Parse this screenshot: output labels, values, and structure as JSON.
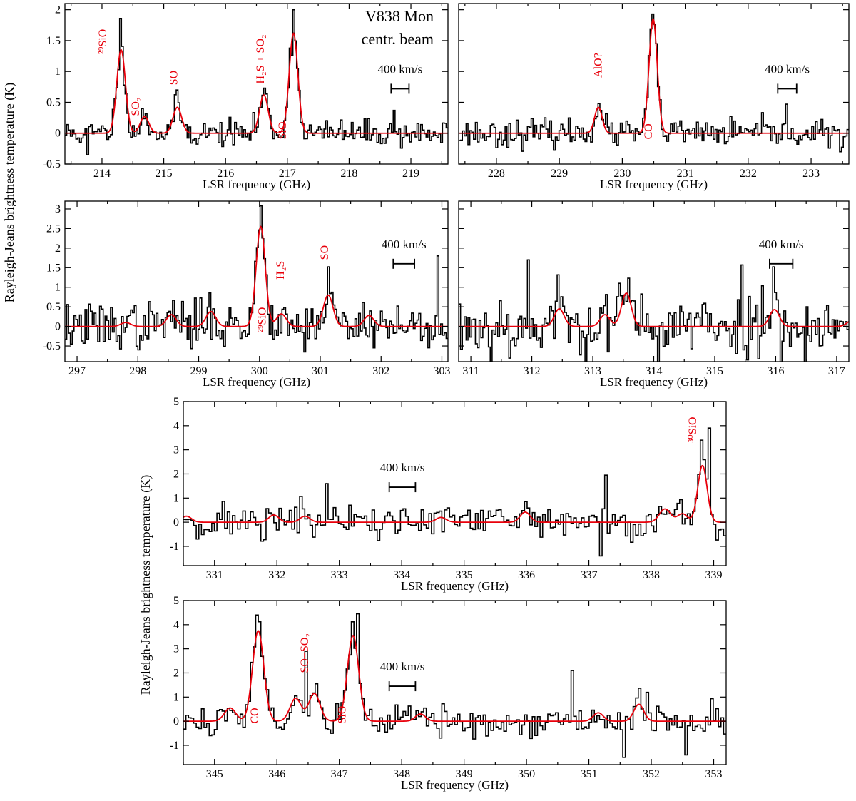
{
  "figure": {
    "ylabel_top": "Rayleigh-Jeans brightness temperature (K)",
    "ylabel_bottom": "Rayleigh-Jeans brightness temperature (K)"
  },
  "chart_data": [
    {
      "id": "p1",
      "type": "line",
      "title": "V838 Mon",
      "subtitle": "centr. beam",
      "xlabel": "LSR frequency (GHz)",
      "ylabel": "",
      "xlim": [
        213.4,
        219.6
      ],
      "ylim": [
        -0.5,
        2.1
      ],
      "xticks": [
        214,
        215,
        216,
        217,
        218,
        219
      ],
      "yticks": [
        -0.5,
        0,
        0.5,
        1,
        1.5,
        2
      ],
      "ytick_labels": [
        "-0.5",
        "0",
        "0.5",
        "1",
        "1.5",
        "2"
      ],
      "scale_bar": {
        "label": "400 km/s",
        "x0": 218.68,
        "x1": 218.97,
        "y": 0.72
      },
      "noise": 0.12,
      "seed": 11,
      "lines": [
        {
          "center": 214.31,
          "amp": 1.35,
          "width": 0.07
        },
        {
          "center": 214.69,
          "amp": 0.27,
          "width": 0.07
        },
        {
          "center": 215.22,
          "amp": 0.42,
          "width": 0.07
        },
        {
          "center": 216.62,
          "amp": 0.62,
          "width": 0.07
        },
        {
          "center": 217.1,
          "amp": 1.62,
          "width": 0.07
        }
      ],
      "observed": [
        {
          "x": 214.31,
          "y": 1.86
        },
        {
          "x": 215.22,
          "y": 0.7
        },
        {
          "x": 217.1,
          "y": 2.0
        },
        {
          "x": 216.62,
          "y": 0.73
        },
        {
          "x": 213.78,
          "y": -0.35
        },
        {
          "x": 218.72,
          "y": 0.37
        }
      ],
      "labels": [
        {
          "text": "²⁹SiO",
          "x": 214.07,
          "y": 1.28,
          "rot": -90
        },
        {
          "text": "SO₂",
          "x": 214.6,
          "y": 0.28,
          "rot": -90
        },
        {
          "text": "SO",
          "x": 215.22,
          "y": 0.78,
          "rot": -90
        },
        {
          "text": "H₂S + SO₂",
          "x": 216.62,
          "y": 0.8,
          "rot": -90
        },
        {
          "text": "SiO",
          "x": 216.98,
          "y": -0.1,
          "rot": -90
        }
      ]
    },
    {
      "id": "p2",
      "type": "line",
      "title": "",
      "subtitle": "",
      "xlabel": "LSR frequency (GHz)",
      "ylabel": "",
      "xlim": [
        227.4,
        233.6
      ],
      "ylim": [
        -0.5,
        2.1
      ],
      "xticks": [
        228,
        229,
        230,
        231,
        232,
        233
      ],
      "yticks": [
        -0.5,
        0,
        0.5,
        1,
        1.5,
        2
      ],
      "ytick_labels": [
        "",
        "",
        "",
        "",
        "",
        ""
      ],
      "scale_bar": {
        "label": "400 km/s",
        "x0": 232.47,
        "x1": 232.77,
        "y": 0.72
      },
      "noise": 0.12,
      "seed": 23,
      "lines": [
        {
          "center": 229.62,
          "amp": 0.42,
          "width": 0.06
        },
        {
          "center": 230.49,
          "amp": 1.85,
          "width": 0.065
        }
      ],
      "observed": [
        {
          "x": 230.49,
          "y": 1.93
        },
        {
          "x": 229.62,
          "y": 0.48
        },
        {
          "x": 232.62,
          "y": 0.47
        },
        {
          "x": 233.48,
          "y": -0.3
        }
      ],
      "labels": [
        {
          "text": "AlO?",
          "x": 229.67,
          "y": 0.9,
          "rot": -90
        },
        {
          "text": "CO",
          "x": 230.47,
          "y": -0.1,
          "rot": -90
        }
      ]
    },
    {
      "id": "p3",
      "type": "line",
      "title": "",
      "subtitle": "",
      "xlabel": "LSR frequency (GHz)",
      "ylabel": "",
      "xlim": [
        296.8,
        303.1
      ],
      "ylim": [
        -0.9,
        3.2
      ],
      "xticks": [
        297,
        298,
        299,
        300,
        301,
        302,
        303
      ],
      "yticks": [
        -0.5,
        0,
        0.5,
        1,
        1.5,
        2,
        2.5,
        3
      ],
      "ytick_labels": [
        "-0.5",
        "0",
        "0.5",
        "1",
        "1.5",
        "2",
        "2.5",
        "3"
      ],
      "scale_bar": {
        "label": "400 km/s",
        "x0": 302.2,
        "x1": 302.55,
        "y": 1.6
      },
      "noise": 0.33,
      "seed": 37,
      "lines": [
        {
          "center": 297.8,
          "amp": 0.1,
          "width": 0.08
        },
        {
          "center": 298.55,
          "amp": 0.3,
          "width": 0.08
        },
        {
          "center": 299.2,
          "amp": 0.38,
          "width": 0.08
        },
        {
          "center": 300.02,
          "amp": 2.55,
          "width": 0.075
        },
        {
          "center": 300.36,
          "amp": 0.32,
          "width": 0.08
        },
        {
          "center": 301.13,
          "amp": 0.8,
          "width": 0.08
        },
        {
          "center": 301.8,
          "amp": 0.28,
          "width": 0.08
        }
      ],
      "observed": [
        {
          "x": 300.02,
          "y": 3.08
        },
        {
          "x": 301.13,
          "y": 1.52
        },
        {
          "x": 302.95,
          "y": 1.8
        }
      ],
      "labels": [
        {
          "text": "²⁹SiO",
          "x": 300.1,
          "y": -0.15,
          "rot": -90
        },
        {
          "text": "H₂S",
          "x": 300.4,
          "y": 1.2,
          "rot": -90
        },
        {
          "text": "SO",
          "x": 301.13,
          "y": 1.7,
          "rot": -90
        }
      ]
    },
    {
      "id": "p4",
      "type": "line",
      "title": "",
      "subtitle": "",
      "xlabel": "LSR frequency (GHz)",
      "ylabel": "",
      "xlim": [
        310.8,
        317.2
      ],
      "ylim": [
        -0.9,
        3.2
      ],
      "xticks": [
        311,
        312,
        313,
        314,
        315,
        316,
        317
      ],
      "yticks": [
        -0.5,
        0,
        0.5,
        1,
        1.5,
        2,
        2.5,
        3
      ],
      "ytick_labels": [
        "",
        "",
        "",
        "",
        "",
        "",
        "",
        ""
      ],
      "scale_bar": {
        "label": "400 km/s",
        "x0": 315.9,
        "x1": 316.28,
        "y": 1.6
      },
      "noise": 0.45,
      "seed": 53,
      "lines": [
        {
          "center": 312.45,
          "amp": 0.45,
          "width": 0.08
        },
        {
          "center": 313.2,
          "amp": 0.3,
          "width": 0.08
        },
        {
          "center": 313.55,
          "amp": 0.85,
          "width": 0.08
        },
        {
          "center": 315.98,
          "amp": 0.43,
          "width": 0.08
        },
        {
          "center": 317.25,
          "amp": 0.15,
          "width": 0.08
        }
      ],
      "observed": [
        {
          "x": 311.95,
          "y": 1.7
        },
        {
          "x": 315.45,
          "y": 1.57
        },
        {
          "x": 315.98,
          "y": 1.52
        }
      ],
      "labels": []
    },
    {
      "id": "p5",
      "type": "line",
      "title": "",
      "subtitle": "",
      "xlabel": "LSR frequency (GHz)",
      "ylabel": "",
      "xlim": [
        330.5,
        339.2
      ],
      "ylim": [
        -1.8,
        5.0
      ],
      "xticks": [
        331,
        332,
        333,
        334,
        335,
        336,
        337,
        338,
        339
      ],
      "yticks": [
        -1,
        0,
        1,
        2,
        3,
        4,
        5
      ],
      "ytick_labels": [
        "-1",
        "0",
        "1",
        "2",
        "3",
        "4",
        "5"
      ],
      "scale_bar": {
        "label": "400 km/s",
        "x0": 333.8,
        "x1": 334.22,
        "y": 1.45
      },
      "noise": 0.42,
      "seed": 71,
      "lines": [
        {
          "center": 330.55,
          "amp": 0.25,
          "width": 0.08
        },
        {
          "center": 331.95,
          "amp": 0.3,
          "width": 0.08
        },
        {
          "center": 332.45,
          "amp": 0.25,
          "width": 0.08
        },
        {
          "center": 334.63,
          "amp": 0.2,
          "width": 0.08
        },
        {
          "center": 335.98,
          "amp": 0.42,
          "width": 0.08
        },
        {
          "center": 338.22,
          "amp": 0.55,
          "width": 0.09
        },
        {
          "center": 338.5,
          "amp": 0.35,
          "width": 0.08
        },
        {
          "center": 338.82,
          "amp": 2.35,
          "width": 0.075
        }
      ],
      "observed": [
        {
          "x": 338.92,
          "y": 3.9
        },
        {
          "x": 338.8,
          "y": 3.4
        },
        {
          "x": 337.28,
          "y": 1.95
        },
        {
          "x": 337.18,
          "y": -1.4
        },
        {
          "x": 332.78,
          "y": 1.6
        }
      ],
      "labels": [
        {
          "text": "³⁰SiO",
          "x": 338.72,
          "y": 3.3,
          "rot": -90
        }
      ]
    },
    {
      "id": "p6",
      "type": "line",
      "title": "",
      "subtitle": "",
      "xlabel": "LSR frequency (GHz)",
      "ylabel": "",
      "xlim": [
        344.5,
        353.2
      ],
      "ylim": [
        -1.8,
        5.0
      ],
      "xticks": [
        345,
        346,
        347,
        348,
        349,
        350,
        351,
        352,
        353
      ],
      "yticks": [
        -1,
        0,
        1,
        2,
        3,
        4,
        5
      ],
      "ytick_labels": [
        "-1",
        "0",
        "1",
        "2",
        "3",
        "4",
        "5"
      ],
      "scale_bar": {
        "label": "400 km/s",
        "x0": 347.8,
        "x1": 348.22,
        "y": 1.45
      },
      "noise": 0.38,
      "seed": 89,
      "lines": [
        {
          "center": 345.25,
          "amp": 0.55,
          "width": 0.09
        },
        {
          "center": 345.7,
          "amp": 3.75,
          "width": 0.09
        },
        {
          "center": 346.3,
          "amp": 0.95,
          "width": 0.09
        },
        {
          "center": 346.6,
          "amp": 1.15,
          "width": 0.09
        },
        {
          "center": 347.22,
          "amp": 3.55,
          "width": 0.09
        },
        {
          "center": 348.3,
          "amp": 0.3,
          "width": 0.08
        },
        {
          "center": 351.15,
          "amp": 0.35,
          "width": 0.08
        },
        {
          "center": 351.8,
          "amp": 0.7,
          "width": 0.08
        }
      ],
      "observed": [
        {
          "x": 345.7,
          "y": 4.4
        },
        {
          "x": 347.28,
          "y": 4.45
        },
        {
          "x": 346.45,
          "y": 2.9
        },
        {
          "x": 350.75,
          "y": 2.1
        },
        {
          "x": 352.55,
          "y": -1.4
        },
        {
          "x": 351.55,
          "y": -1.5
        }
      ],
      "labels": [
        {
          "text": "CO",
          "x": 345.7,
          "y": -0.1,
          "rot": -90
        },
        {
          "text": "SO+SO₂",
          "x": 346.5,
          "y": 2.0,
          "rot": -90
        },
        {
          "text": "SiO",
          "x": 347.1,
          "y": -0.1,
          "rot": -90
        }
      ]
    }
  ]
}
